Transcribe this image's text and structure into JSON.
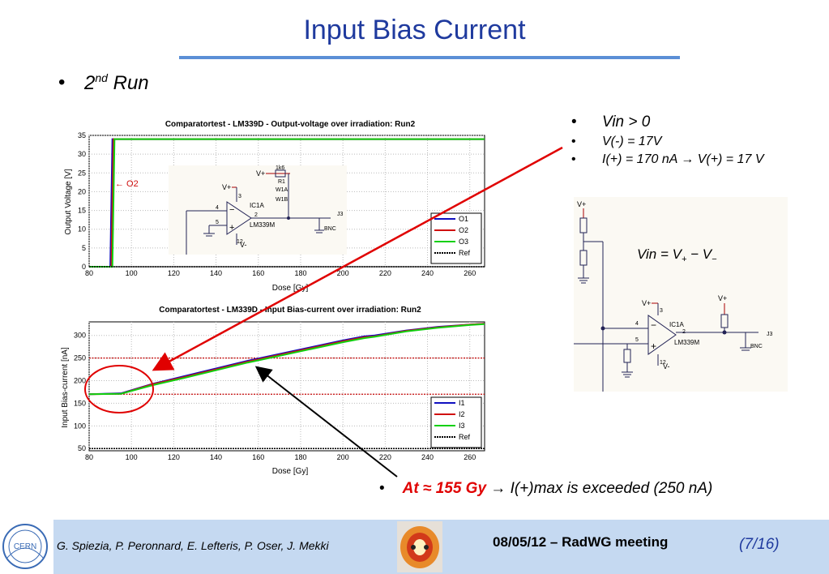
{
  "slide": {
    "title": "Input Bias Current",
    "run_bullet": "•",
    "run_number": "2",
    "run_sup": "nd",
    "run_label": "Run"
  },
  "charts_text": {
    "top_title": "Comparatortest - LM339D - Output-voltage over irradiation: Run2",
    "top_ylabel": "Output Voltage [V]",
    "top_xlabel": "Dose [Gy]",
    "top_annotation": "← O2",
    "bottom_title": "Comparatortest - LM339D - Input Bias-current over irradiation: Run2",
    "bottom_ylabel": "Input Bias-current [nA]",
    "bottom_xlabel": "Dose [Gy]"
  },
  "schematic_small": {
    "vplus": "V+",
    "vminus": "V-",
    "ic": "IC1A",
    "part": "LM339M",
    "r": "1k6",
    "r1": "R1",
    "w1a": "W1A",
    "w1b": "W1B",
    "pin4": "4",
    "pin5": "5",
    "pin2": "2",
    "pin3": "3",
    "pin12": "12",
    "j": "J3",
    "bnc": "BNC"
  },
  "bullets": [
    {
      "text": "Vin > 0"
    },
    {
      "text": "V(-) = 17V"
    },
    {
      "text": "I(+) = 170 nA → V(+) = 17 V"
    }
  ],
  "bullet_glyph": "•",
  "schematic_large": {
    "formula_vin": "Vin",
    "formula_eq": " = ",
    "formula_v1": "V",
    "formula_sub1": "+",
    "formula_minus": " − ",
    "formula_v2": "V",
    "formula_sub2": "−",
    "vplus": "V+",
    "vminus": "V-",
    "ic": "IC1A",
    "part": "LM339M",
    "j": "J3",
    "bnc": "BNC",
    "pin4": "4",
    "pin5": "5",
    "pin2": "2",
    "pin3": "3",
    "pin12": "12"
  },
  "note": {
    "bullet": "•",
    "highlight": "At ≈ 155 Gy",
    "rest": " → I(+)max is exceeded (250 nA)"
  },
  "footer": {
    "authors": "G. Spiezia, P. Peronnard, E. Lefteris, P. Oser, J. Mekki",
    "meeting": "08/05/12 – RadWG meeting",
    "page": "(7/16)",
    "cern": "CERN"
  },
  "colors": {
    "title": "#1f3a9e",
    "O1": "#1010c0",
    "O2": "#d01010",
    "O3": "#10d010",
    "Ref": "#000000",
    "arrow_red": "#e00000",
    "footer_band": "#c5d9f1"
  },
  "chart_data": [
    {
      "type": "line",
      "title": "Comparatortest - LM339D - Output-voltage over irradiation: Run2",
      "xlabel": "Dose [Gy]",
      "ylabel": "Output Voltage [V]",
      "xlim": [
        80,
        267
      ],
      "ylim": [
        0,
        35
      ],
      "xticks": [
        80,
        100,
        120,
        140,
        160,
        180,
        200,
        220,
        240,
        260
      ],
      "yticks": [
        0,
        5,
        10,
        15,
        20,
        25,
        30,
        35
      ],
      "grid": true,
      "legend": "bottom-right",
      "series": [
        {
          "name": "O1",
          "x": [
            80,
            90,
            91,
            92,
            267
          ],
          "y": [
            0,
            0,
            34,
            34,
            34
          ]
        },
        {
          "name": "O2",
          "x": [
            80,
            90.5,
            91.5,
            92.5,
            267
          ],
          "y": [
            0,
            0,
            34,
            34,
            34
          ]
        },
        {
          "name": "O3",
          "x": [
            80,
            91,
            92,
            93,
            267
          ],
          "y": [
            0,
            0,
            34,
            34,
            34
          ]
        },
        {
          "name": "Ref",
          "x": [
            80,
            267
          ],
          "y": [
            0,
            0
          ]
        }
      ]
    },
    {
      "type": "line",
      "title": "Comparatortest - LM339D - Input Bias-current over irradiation: Run2",
      "xlabel": "Dose [Gy]",
      "ylabel": "Input Bias-current [nA]",
      "xlim": [
        80,
        267
      ],
      "ylim": [
        45,
        330
      ],
      "xticks": [
        80,
        100,
        120,
        140,
        160,
        180,
        200,
        220,
        240,
        260
      ],
      "yticks": [
        50,
        100,
        150,
        200,
        250,
        300
      ],
      "grid": true,
      "legend": "bottom-right",
      "hlines": [
        250,
        170
      ],
      "series": [
        {
          "name": "I1",
          "x": [
            80,
            95,
            110,
            125,
            140,
            155,
            170,
            185,
            200,
            210,
            215,
            230,
            245,
            260,
            267
          ],
          "y": [
            170,
            172,
            193,
            210,
            227,
            244,
            259,
            274,
            289,
            298,
            300,
            311,
            319,
            324,
            326
          ]
        },
        {
          "name": "I2",
          "x": [
            80,
            95,
            110,
            125,
            140,
            155,
            170,
            185,
            200,
            210,
            215,
            230,
            245,
            260,
            267
          ],
          "y": [
            170,
            171,
            192,
            208,
            225,
            242,
            257,
            272,
            287,
            296,
            298,
            310,
            318,
            324,
            326
          ]
        },
        {
          "name": "I3",
          "x": [
            80,
            95,
            110,
            125,
            140,
            155,
            170,
            185,
            200,
            210,
            215,
            230,
            245,
            260,
            267
          ],
          "y": [
            170,
            171,
            190,
            206,
            223,
            240,
            255,
            270,
            285,
            294,
            297,
            309,
            317,
            323,
            325
          ]
        },
        {
          "name": "Ref",
          "x": [
            80,
            267
          ],
          "y": [
            50,
            50
          ]
        }
      ]
    }
  ]
}
